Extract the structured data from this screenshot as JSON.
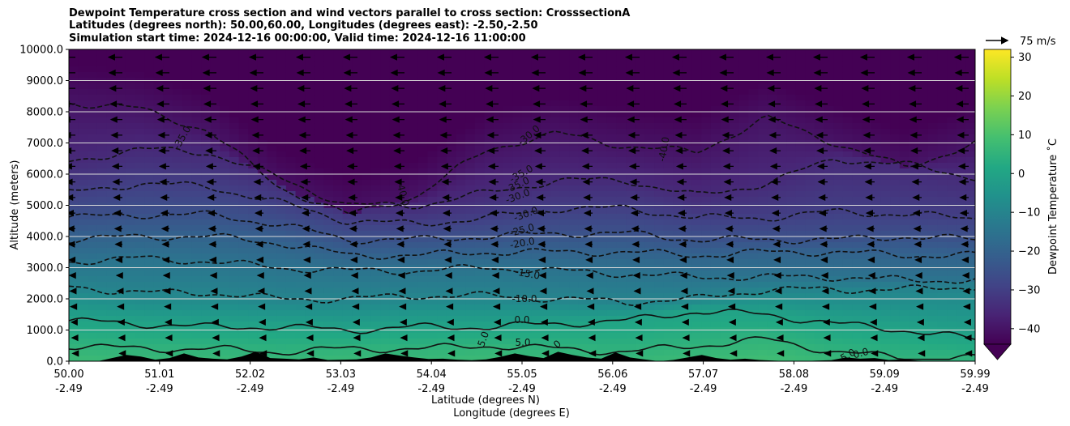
{
  "title": {
    "line1": "Dewpoint Temperature cross section and wind vectors parallel to cross section: CrosssectionA",
    "line2": "Latitudes (degrees north): 50.00,60.00, Longitudes (degrees east): -2.50,-2.50",
    "line3": "Simulation start time: 2024-12-16 00:00:00, Valid time: 2024-12-16 11:00:00"
  },
  "chart_data": {
    "type": "heatmap",
    "xlabel_lat": "Latitude (degrees N)",
    "xlabel_lon": "Longitude (degrees E)",
    "ylabel": "Altitude (meters)",
    "ylim": [
      0,
      10000
    ],
    "y_ticks": [
      "0.0",
      "1000.0",
      "2000.0",
      "3000.0",
      "4000.0",
      "5000.0",
      "6000.0",
      "7000.0",
      "8000.0",
      "9000.0",
      "10000.0"
    ],
    "x_ticks": [
      {
        "lat": "50.00",
        "lon": "-2.49"
      },
      {
        "lat": "51.01",
        "lon": "-2.49"
      },
      {
        "lat": "52.02",
        "lon": "-2.49"
      },
      {
        "lat": "53.03",
        "lon": "-2.49"
      },
      {
        "lat": "54.04",
        "lon": "-2.49"
      },
      {
        "lat": "55.05",
        "lon": "-2.49"
      },
      {
        "lat": "56.06",
        "lon": "-2.49"
      },
      {
        "lat": "57.07",
        "lon": "-2.49"
      },
      {
        "lat": "58.08",
        "lon": "-2.49"
      },
      {
        "lat": "59.09",
        "lon": "-2.49"
      },
      {
        "lat": "59.99",
        "lon": "-2.49"
      }
    ],
    "colorbar": {
      "label": "Dewpoint Temperature ˚C",
      "range": [
        -44,
        32
      ],
      "ticks": [
        "30",
        "20",
        "10",
        "0",
        "−10",
        "−20",
        "−30",
        "−40"
      ],
      "colors": [
        "#440154",
        "#482475",
        "#414487",
        "#355f8d",
        "#2a788e",
        "#21918c",
        "#22a884",
        "#44bf70",
        "#7ad151",
        "#bddf26",
        "#fde725"
      ]
    },
    "wind_key": {
      "label": "75 m/s",
      "speed": 75
    },
    "contour_labels": [
      "-35.0",
      "-40.0",
      "-30.0",
      "-35.0",
      "-40.0",
      "-30.0",
      "-35.0",
      "-30.0",
      "-25.0",
      "-20.0",
      "-15.0",
      "-10.0",
      "0.0",
      "5.0",
      "5.0",
      "0",
      "5.0",
      "0.0"
    ],
    "contour_levels": [
      {
        "level": -40,
        "alt_m": [
          8300,
          8100,
          7400,
          5600,
          4700,
          5300,
          6800,
          7300,
          6900,
          6700,
          7800,
          7000,
          6200,
          7000
        ]
      },
      {
        "level": -35,
        "alt_m": [
          6400,
          6800,
          6700,
          5900,
          5000,
          5000,
          5400,
          5800,
          5800,
          5300,
          5700,
          6500,
          6300,
          5900
        ]
      },
      {
        "level": -30,
        "alt_m": [
          5400,
          5700,
          5600,
          5100,
          4500,
          4400,
          4600,
          4900,
          4900,
          4600,
          4600,
          4800,
          4700,
          4600
        ]
      },
      {
        "level": -25,
        "alt_m": [
          4600,
          4700,
          4700,
          4400,
          3900,
          3900,
          4000,
          4100,
          4100,
          3900,
          3900,
          3900,
          4000,
          3900
        ]
      },
      {
        "level": -20,
        "alt_m": [
          3900,
          4000,
          4000,
          3800,
          3400,
          3400,
          3500,
          3500,
          3500,
          3400,
          3500,
          3500,
          3400,
          3400
        ]
      },
      {
        "level": -15,
        "alt_m": [
          3200,
          3300,
          3200,
          3000,
          2900,
          2900,
          3000,
          2900,
          2800,
          2700,
          2700,
          2700,
          2600,
          2600
        ]
      },
      {
        "level": -10,
        "alt_m": [
          2400,
          2200,
          2200,
          2000,
          2000,
          2100,
          2100,
          2000,
          1900,
          2000,
          2300,
          2300,
          2300,
          2400
        ]
      },
      {
        "level": 0,
        "alt_m": [
          1300,
          1200,
          1100,
          1100,
          1000,
          1100,
          1100,
          1200,
          1300,
          1600,
          1500,
          1200,
          1000,
          700
        ]
      },
      {
        "level": 5,
        "alt_m": [
          500,
          400,
          400,
          300,
          400,
          400,
          500,
          400,
          300,
          500,
          700,
          300,
          100,
          100
        ]
      }
    ],
    "terrain_m": [
      0,
      0,
      0,
      100,
      200,
      150,
      50,
      100,
      250,
      120,
      80,
      60,
      150,
      300,
      100,
      80,
      60,
      120,
      40,
      50,
      60,
      120,
      250,
      180,
      120,
      70,
      80,
      50,
      30,
      60,
      140,
      250,
      160,
      100,
      300,
      200,
      120,
      80,
      280,
      120,
      60,
      0,
      40,
      120,
      200,
      100,
      50,
      80,
      40,
      20,
      0,
      0,
      20,
      30,
      120,
      80,
      100,
      40,
      60,
      20,
      0,
      0,
      0,
      0
    ]
  }
}
